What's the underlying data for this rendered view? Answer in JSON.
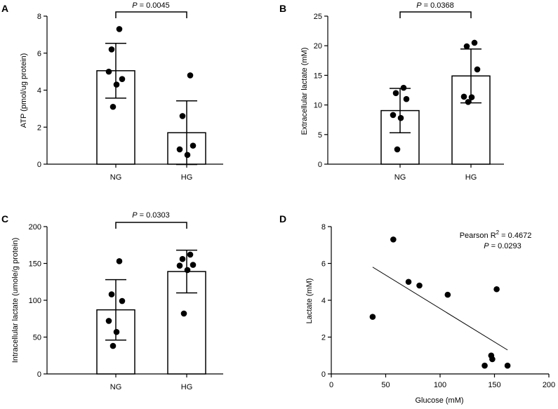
{
  "chart_data": [
    {
      "panel": "A",
      "type": "bar",
      "ylabel": "ATP (pmol/ug protein)",
      "xlabel": "",
      "ylim": [
        0,
        8
      ],
      "yticks": [
        0,
        2,
        4,
        6,
        8
      ],
      "categories": [
        "NG",
        "HG"
      ],
      "values": [
        5.05,
        1.7
      ],
      "errors": [
        1.48,
        1.72
      ],
      "points": [
        [
          7.3,
          6.2,
          4.6,
          5.0,
          4.3,
          3.1
        ],
        [
          4.8,
          2.6,
          1.0,
          0.8,
          0.5
        ]
      ],
      "pvalue": {
        "prefix": "P",
        "text": " = 0.0045"
      }
    },
    {
      "panel": "B",
      "type": "bar",
      "ylabel": "Extracellular lactate (mM)",
      "xlabel": "",
      "ylim": [
        0,
        25
      ],
      "yticks": [
        0,
        5,
        10,
        15,
        20,
        25
      ],
      "categories": [
        "NG",
        "HG"
      ],
      "values": [
        9.05,
        14.9
      ],
      "errors": [
        3.75,
        4.55
      ],
      "points": [
        [
          12.9,
          12.0,
          11.0,
          8.3,
          7.8,
          2.5
        ],
        [
          20.5,
          19.9,
          16.0,
          11.4,
          11.3,
          10.5
        ]
      ],
      "pvalue": {
        "prefix": "P",
        "text": " = 0.0368"
      }
    },
    {
      "panel": "C",
      "type": "bar",
      "ylabel": "Intracellular lactate (umole/g protein)",
      "xlabel": "",
      "ylim": [
        0,
        200
      ],
      "yticks": [
        0,
        50,
        100,
        150,
        200
      ],
      "categories": [
        "NG",
        "HG"
      ],
      "values": [
        87,
        139
      ],
      "errors": [
        41,
        29
      ],
      "points": [
        [
          153,
          108,
          99,
          72,
          57,
          38
        ],
        [
          162,
          156,
          148,
          147,
          141,
          82
        ]
      ],
      "pvalue": {
        "prefix": "P",
        "text": " = 0.0303"
      }
    },
    {
      "panel": "D",
      "type": "scatter",
      "xlabel": "Glucose (mM)",
      "ylabel": "Lactate (mM)",
      "xlim": [
        0,
        200
      ],
      "ylim": [
        0,
        8
      ],
      "xticks": [
        0,
        50,
        100,
        150,
        200
      ],
      "yticks": [
        0,
        2,
        4,
        6,
        8
      ],
      "x": [
        38,
        57,
        71,
        81,
        107,
        141,
        147,
        148,
        152,
        162
      ],
      "y": [
        3.1,
        7.3,
        5.0,
        4.8,
        4.3,
        0.45,
        1.0,
        0.8,
        4.6,
        0.45
      ],
      "fit_line": {
        "x": [
          38,
          162
        ],
        "y": [
          5.8,
          1.3
        ]
      },
      "annotation": {
        "line1": "Pearson R",
        "sup": "2",
        "r2": " = 0.4672",
        "p_prefix": "P",
        "p_text": " = 0.0293"
      }
    }
  ],
  "panel_letters": [
    "A",
    "B",
    "C",
    "D"
  ]
}
